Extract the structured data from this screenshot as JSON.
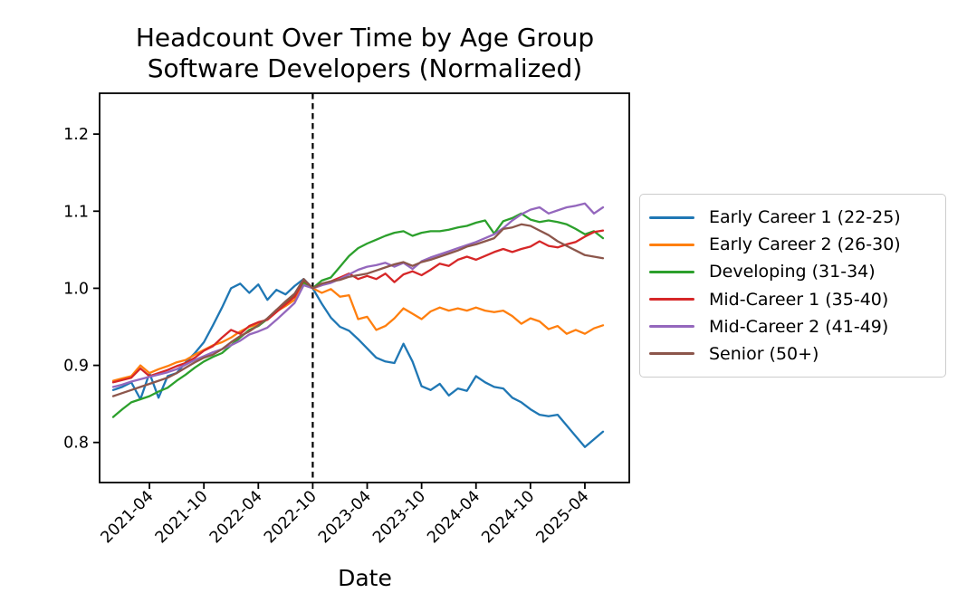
{
  "figure": {
    "title_line1": "Headcount Over Time by Age Group",
    "title_line2": "Software Developers (Normalized)",
    "xlabel": "Date"
  },
  "chart_data": {
    "type": "line",
    "title": "Headcount Over Time by Age Group\nSoftware Developers (Normalized)",
    "xlabel": "Date",
    "ylabel": "",
    "grid": false,
    "legend_position": "right",
    "ylim": [
      0.748,
      1.253
    ],
    "y_ticks": [
      "0.8",
      "0.9",
      "1.0",
      "1.1",
      "1.2"
    ],
    "x_tick_labels": [
      "2021-04",
      "2021-10",
      "2022-04",
      "2022-10",
      "2023-04",
      "2023-10",
      "2024-04",
      "2024-10",
      "2025-04"
    ],
    "vline": {
      "x": "2022-10",
      "style": "dashed",
      "color": "#000000"
    },
    "x": [
      "2020-12",
      "2021-01",
      "2021-02",
      "2021-03",
      "2021-04",
      "2021-05",
      "2021-06",
      "2021-07",
      "2021-08",
      "2021-09",
      "2021-10",
      "2021-11",
      "2021-12",
      "2022-01",
      "2022-02",
      "2022-03",
      "2022-04",
      "2022-05",
      "2022-06",
      "2022-07",
      "2022-08",
      "2022-09",
      "2022-10",
      "2022-11",
      "2022-12",
      "2023-01",
      "2023-02",
      "2023-03",
      "2023-04",
      "2023-05",
      "2023-06",
      "2023-07",
      "2023-08",
      "2023-09",
      "2023-10",
      "2023-11",
      "2023-12",
      "2024-01",
      "2024-02",
      "2024-03",
      "2024-04",
      "2024-05",
      "2024-06",
      "2024-07",
      "2024-08",
      "2024-09",
      "2024-10",
      "2024-11",
      "2024-12",
      "2025-01",
      "2025-02",
      "2025-03",
      "2025-04",
      "2025-05",
      "2025-06"
    ],
    "series": [
      {
        "name": "Early Career 1 (22-25)",
        "color": "#1f77b4",
        "values": [
          0.868,
          0.872,
          0.878,
          0.856,
          0.89,
          0.858,
          0.886,
          0.89,
          0.904,
          0.916,
          0.93,
          0.952,
          0.975,
          1.0,
          1.006,
          0.994,
          1.005,
          0.985,
          0.998,
          0.992,
          1.003,
          1.012,
          1.0,
          0.98,
          0.962,
          0.95,
          0.945,
          0.934,
          0.922,
          0.91,
          0.905,
          0.903,
          0.928,
          0.905,
          0.873,
          0.868,
          0.876,
          0.861,
          0.87,
          0.867,
          0.886,
          0.878,
          0.872,
          0.87,
          0.858,
          0.852,
          0.843,
          0.836,
          0.834,
          0.836,
          0.822,
          0.808,
          0.794,
          0.804,
          0.814
        ]
      },
      {
        "name": "Early Career 2 (26-30)",
        "color": "#ff7f0e",
        "values": [
          0.88,
          0.883,
          0.886,
          0.9,
          0.89,
          0.895,
          0.899,
          0.904,
          0.907,
          0.914,
          0.92,
          0.926,
          0.93,
          0.936,
          0.944,
          0.95,
          0.953,
          0.96,
          0.97,
          0.977,
          0.985,
          1.006,
          1.0,
          0.994,
          0.999,
          0.989,
          0.991,
          0.96,
          0.963,
          0.946,
          0.951,
          0.961,
          0.974,
          0.967,
          0.96,
          0.97,
          0.975,
          0.971,
          0.974,
          0.971,
          0.975,
          0.971,
          0.969,
          0.971,
          0.964,
          0.954,
          0.961,
          0.957,
          0.947,
          0.951,
          0.941,
          0.946,
          0.941,
          0.948,
          0.952
        ]
      },
      {
        "name": "Developing (31-34)",
        "color": "#2ca02c",
        "values": [
          0.833,
          0.843,
          0.852,
          0.856,
          0.86,
          0.866,
          0.871,
          0.88,
          0.888,
          0.897,
          0.905,
          0.911,
          0.916,
          0.926,
          0.936,
          0.946,
          0.951,
          0.96,
          0.972,
          0.98,
          0.991,
          1.008,
          1.0,
          1.01,
          1.014,
          1.028,
          1.042,
          1.052,
          1.058,
          1.063,
          1.068,
          1.072,
          1.074,
          1.068,
          1.072,
          1.074,
          1.074,
          1.076,
          1.079,
          1.081,
          1.085,
          1.088,
          1.071,
          1.087,
          1.091,
          1.097,
          1.089,
          1.086,
          1.088,
          1.086,
          1.083,
          1.077,
          1.07,
          1.074,
          1.065
        ]
      },
      {
        "name": "Mid-Career 1 (35-40)",
        "color": "#d62728",
        "values": [
          0.878,
          0.881,
          0.884,
          0.896,
          0.886,
          0.89,
          0.894,
          0.899,
          0.903,
          0.91,
          0.919,
          0.925,
          0.936,
          0.946,
          0.941,
          0.951,
          0.956,
          0.959,
          0.969,
          0.979,
          0.989,
          1.011,
          1.0,
          1.004,
          1.009,
          1.014,
          1.019,
          1.012,
          1.016,
          1.012,
          1.019,
          1.008,
          1.018,
          1.022,
          1.017,
          1.024,
          1.032,
          1.029,
          1.037,
          1.041,
          1.037,
          1.042,
          1.047,
          1.051,
          1.047,
          1.051,
          1.054,
          1.061,
          1.055,
          1.053,
          1.057,
          1.06,
          1.067,
          1.073,
          1.075
        ]
      },
      {
        "name": "Mid-Career 2 (41-49)",
        "color": "#9467bd",
        "values": [
          0.872,
          0.875,
          0.879,
          0.882,
          0.885,
          0.888,
          0.891,
          0.895,
          0.901,
          0.907,
          0.912,
          0.917,
          0.921,
          0.926,
          0.932,
          0.94,
          0.944,
          0.949,
          0.959,
          0.97,
          0.981,
          1.004,
          1.0,
          1.004,
          1.007,
          1.012,
          1.018,
          1.024,
          1.028,
          1.03,
          1.033,
          1.028,
          1.033,
          1.025,
          1.035,
          1.04,
          1.044,
          1.048,
          1.052,
          1.056,
          1.06,
          1.065,
          1.07,
          1.078,
          1.088,
          1.096,
          1.102,
          1.105,
          1.097,
          1.101,
          1.105,
          1.107,
          1.11,
          1.097,
          1.105
        ]
      },
      {
        "name": "Senior (50+)",
        "color": "#8c564b",
        "values": [
          0.86,
          0.864,
          0.868,
          0.872,
          0.876,
          0.88,
          0.884,
          0.89,
          0.897,
          0.904,
          0.91,
          0.914,
          0.921,
          0.93,
          0.938,
          0.944,
          0.952,
          0.961,
          0.972,
          0.983,
          0.993,
          1.012,
          1.0,
          1.006,
          1.009,
          1.011,
          1.015,
          1.017,
          1.019,
          1.023,
          1.027,
          1.031,
          1.034,
          1.029,
          1.034,
          1.037,
          1.041,
          1.045,
          1.049,
          1.054,
          1.057,
          1.061,
          1.065,
          1.077,
          1.079,
          1.083,
          1.081,
          1.075,
          1.069,
          1.061,
          1.055,
          1.049,
          1.043,
          1.041,
          1.039
        ]
      }
    ]
  }
}
